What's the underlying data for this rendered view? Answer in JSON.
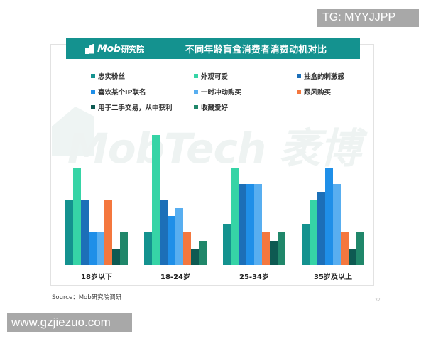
{
  "header": {
    "logo_text": "Mob",
    "logo_cn": "研究院",
    "title": "不同年龄盲盒消费者消费动机对比"
  },
  "watermark_text": "MobTech 袤博",
  "legend": [
    {
      "label": "忠实粉丝",
      "color": "#14928f"
    },
    {
      "label": "外观可爱",
      "color": "#36d4a6"
    },
    {
      "label": "抽盒的刺激感",
      "color": "#1c6fb8"
    },
    {
      "label": "喜欢某个IP联名",
      "color": "#1f8fe8"
    },
    {
      "label": "一时冲动购买",
      "color": "#58aef0"
    },
    {
      "label": "跟风购买",
      "color": "#f4773e"
    },
    {
      "label": "用于二手交易，从中获利",
      "color": "#0e5a52"
    },
    {
      "label": "收藏爱好",
      "color": "#20876a"
    }
  ],
  "chart_data": {
    "type": "bar",
    "title": "不同年龄盲盒消费者消费动机对比",
    "xlabel": "",
    "ylabel": "",
    "grid": false,
    "legend_position": "top",
    "ylim": [
      0,
      90
    ],
    "categories": [
      "18岁以下",
      "18-24岁",
      "25-34岁",
      "35岁及以上"
    ],
    "series": [
      {
        "name": "忠实粉丝",
        "color": "#14928f",
        "values": [
          40,
          20,
          25,
          25
        ]
      },
      {
        "name": "外观可爱",
        "color": "#36d4a6",
        "values": [
          60,
          80,
          60,
          40
        ]
      },
      {
        "name": "抽盒的刺激感",
        "color": "#1c6fb8",
        "values": [
          40,
          40,
          50,
          45
        ]
      },
      {
        "name": "喜欢某个IP联名",
        "color": "#1f8fe8",
        "values": [
          20,
          30,
          50,
          60
        ]
      },
      {
        "name": "一时冲动购买",
        "color": "#58aef0",
        "values": [
          20,
          35,
          50,
          50
        ]
      },
      {
        "name": "跟风购买",
        "color": "#f4773e",
        "values": [
          40,
          20,
          20,
          20
        ]
      },
      {
        "name": "用于二手交易，从中获利",
        "color": "#0e5a52",
        "values": [
          10,
          10,
          15,
          10
        ]
      },
      {
        "name": "收藏爱好",
        "color": "#20876a",
        "values": [
          20,
          15,
          20,
          20
        ]
      }
    ]
  },
  "footer": {
    "source": "Source：Mob研究院调研",
    "page_number": "32"
  },
  "overlays": {
    "tag": "TG: MYYJJPP",
    "url": "www.gzjiezuo.com"
  }
}
